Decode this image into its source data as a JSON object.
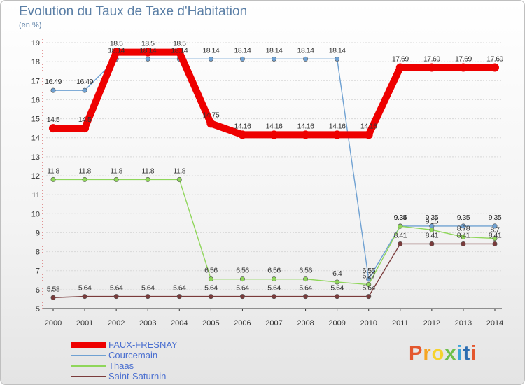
{
  "chart_data": {
    "type": "line",
    "title": "Evolution du Taux de Taxe d'Habitation",
    "subtitle": "(en %)",
    "x": [
      "2000",
      "2001",
      "2002",
      "2003",
      "2004",
      "2005",
      "2006",
      "2007",
      "2008",
      "2009",
      "2010",
      "2011",
      "2012",
      "2013",
      "2014"
    ],
    "yticks": [
      "5",
      "6",
      "7",
      "8",
      "9",
      "10",
      "11",
      "12",
      "13",
      "14",
      "15",
      "16",
      "17",
      "18",
      "19"
    ],
    "ylim": [
      5,
      19
    ],
    "grid": "horizontal dashed",
    "legend_position": "bottom-left",
    "series": [
      {
        "name": "Courcemain",
        "color": "#6fa1d2",
        "values": [
          16.49,
          16.49,
          18.14,
          18.14,
          18.14,
          18.14,
          18.14,
          18.14,
          18.14,
          18.14,
          6.55,
          9.35,
          9.35,
          9.35,
          9.35
        ],
        "labels": [
          "16.49",
          "16.49",
          "18.14",
          "18.14",
          "18.14",
          "18.14",
          "18.14",
          "18.14",
          "18.14",
          "18.14",
          "6.55",
          "9.35",
          "9.35",
          "9.35",
          "9.35"
        ]
      },
      {
        "name": "Thaas",
        "color": "#8fd65a",
        "values": [
          11.8,
          11.8,
          11.8,
          11.8,
          11.8,
          6.56,
          6.56,
          6.56,
          6.56,
          6.4,
          6.27,
          9.34,
          9.15,
          8.78,
          8.7
        ],
        "labels": [
          "11.8",
          "11.8",
          "11.8",
          "11.8",
          "11.8",
          "6.56",
          "6.56",
          "6.56",
          "6.56",
          "6.4",
          "6.27",
          "9.34",
          "9.15",
          "8.78",
          "8.7"
        ]
      },
      {
        "name": "Saint-Saturnin",
        "color": "#7a3b3b",
        "values": [
          5.58,
          5.64,
          5.64,
          5.64,
          5.64,
          5.64,
          5.64,
          5.64,
          5.64,
          5.64,
          5.64,
          8.41,
          8.41,
          8.41,
          8.41
        ],
        "labels": [
          "5.58",
          "5.64",
          "5.64",
          "5.64",
          "5.64",
          "5.64",
          "5.64",
          "5.64",
          "5.64",
          "5.64",
          "5.64",
          "8.41",
          "8.41",
          "8.41",
          "8.41"
        ]
      },
      {
        "name": "FAUX-FRESNAY",
        "color": "#ee0000",
        "values": [
          14.5,
          14.5,
          18.5,
          18.5,
          18.5,
          14.75,
          14.16,
          14.16,
          14.16,
          14.16,
          14.16,
          17.69,
          17.69,
          17.69,
          17.69
        ],
        "labels": [
          "14.5",
          "14.5",
          "18.5",
          "18.5",
          "18.5",
          "14.75",
          "14.16",
          "14.16",
          "14.16",
          "14.16",
          "14.16",
          "17.69",
          "17.69",
          "17.69",
          "17.69"
        ]
      }
    ],
    "legend": [
      {
        "name": "FAUX-FRESNAY",
        "color": "#ee0000"
      },
      {
        "name": "Courcemain",
        "color": "#6fa1d2"
      },
      {
        "name": "Thaas",
        "color": "#8fd65a"
      },
      {
        "name": "Saint-Saturnin",
        "color": "#7a3b3b"
      }
    ]
  },
  "logo": {
    "text": "Proxiti",
    "colors": [
      "#e4572e",
      "#f6a623",
      "#f6d32d",
      "#6fc04b",
      "#3ba3d9",
      "#2b6cb0",
      "#e4572e"
    ]
  }
}
